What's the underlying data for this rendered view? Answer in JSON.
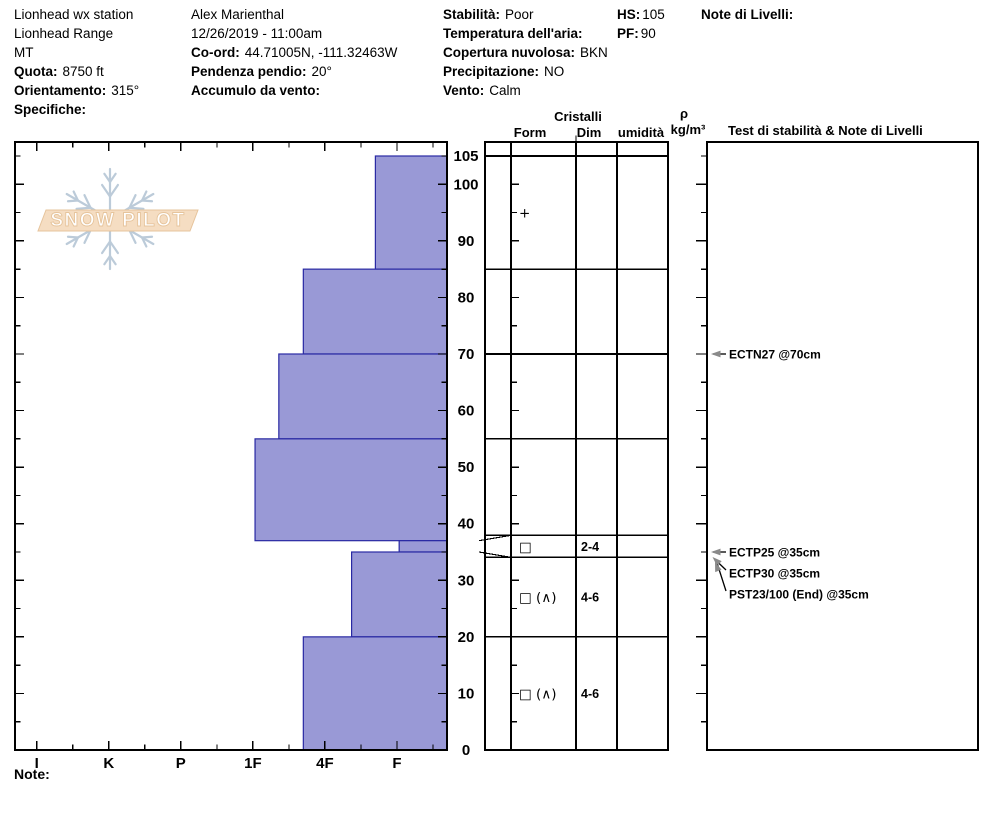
{
  "header": {
    "station": {
      "line1": "Lionhead wx station",
      "line2": "Lionhead Range",
      "line3": "MT",
      "elevation_label": "Quota:",
      "elevation_value": "8750 ft",
      "aspect_label": "Orientamento:",
      "aspect_value": "315°",
      "notes_label": "Specifiche:"
    },
    "observer": {
      "name": "Alex Marienthal",
      "datetime": "12/26/2019 - 11:00am",
      "coord_label": "Co-ord:",
      "coord_value": "44.71005N, -111.32463W",
      "slope_label": "Pendenza pendio:",
      "slope_value": "20°",
      "wind_loading_label": "Accumulo da vento:",
      "wind_loading_value": ""
    },
    "conditions": {
      "stability_label": "Stabilità:",
      "stability_value": "Poor",
      "air_temp_label": "Temperatura dell'aria:",
      "air_temp_value": "",
      "sky_label": "Copertura nuvolosa:",
      "sky_value": "BKN",
      "precip_label": "Precipitazione:",
      "precip_value": "NO",
      "wind_label": "Vento:",
      "wind_value": "Calm"
    },
    "hs_label": "HS:",
    "hs_value": "105",
    "pf_label": "PF:",
    "pf_value": "90",
    "level_notes_label": "Note di Livelli:"
  },
  "table_headers": {
    "cristalli": "Cristalli",
    "form": "Form",
    "dim": "Dim",
    "humidity": "umidità",
    "density_rho": "ρ",
    "density_unit": "kg/m³",
    "tests": "Test di stabilità & Note di Livelli"
  },
  "footer": {
    "note_label": "Note:"
  },
  "logo": {
    "text": "SNOW PILOT"
  },
  "colors": {
    "bar_fill": "#9999d6",
    "bar_border": "#2929a3",
    "line": "#000000",
    "arrow_gray": "#8a8a8a",
    "logo_banner_fill": "#f5ddc2",
    "logo_banner_edge": "#e6c49c",
    "logo_flake": "#bccbd9",
    "logo_text_fill": "#ffffff"
  },
  "chart_data": {
    "type": "bar",
    "title": "Snow hardness profile (SnowPilot)",
    "orientation": "horizontal",
    "depth_axis": {
      "unit": "cm",
      "min": 0,
      "max": 105,
      "tick_labels": [
        105,
        100,
        90,
        80,
        70,
        60,
        50,
        40,
        30,
        20,
        10,
        0
      ],
      "minor_tick_step": 5
    },
    "hardness_axis": {
      "tick_labels": [
        "I",
        "K",
        "P",
        "1F",
        "4F",
        "F"
      ]
    },
    "layers": [
      {
        "top_cm": 105,
        "bottom_cm": 85,
        "hardness": "F-",
        "hardness_index": 4.7,
        "grain_form": "+",
        "grain_size_mm": ""
      },
      {
        "top_cm": 85,
        "bottom_cm": 70,
        "hardness": "4F+",
        "hardness_index": 3.7,
        "grain_form": "",
        "grain_size_mm": ""
      },
      {
        "top_cm": 70,
        "bottom_cm": 55,
        "hardness": "1F-",
        "hardness_index": 3.36,
        "grain_form": "",
        "grain_size_mm": ""
      },
      {
        "top_cm": 55,
        "bottom_cm": 37,
        "hardness": "1F",
        "hardness_index": 3.03,
        "grain_form": "",
        "grain_size_mm": ""
      },
      {
        "top_cm": 37,
        "bottom_cm": 35,
        "hardness": "F",
        "hardness_index": 5.03,
        "grain_form": "□",
        "grain_size_mm": "2-4"
      },
      {
        "top_cm": 35,
        "bottom_cm": 20,
        "hardness": "4F-",
        "hardness_index": 4.37,
        "grain_form": "□ (∧)",
        "grain_size_mm": "4-6"
      },
      {
        "top_cm": 20,
        "bottom_cm": 0,
        "hardness": "4F+",
        "hardness_index": 3.7,
        "grain_form": "□ (∧)",
        "grain_size_mm": "4-6"
      }
    ],
    "stability_tests": [
      {
        "label": "ECTN27 @70cm",
        "depth_cm": 70
      },
      {
        "label": "ECTP25 @35cm",
        "depth_cm": 35
      },
      {
        "label": "ECTP30 @35cm",
        "depth_cm": 35
      },
      {
        "label": "PST23/100 (End) @35cm",
        "depth_cm": 35
      }
    ]
  }
}
